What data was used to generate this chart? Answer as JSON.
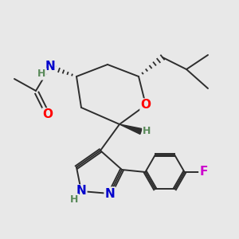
{
  "background_color": "#e8e8e8",
  "bond_color": "#2d2d2d",
  "atom_colors": {
    "O": "#ff0000",
    "N": "#0000cc",
    "H": "#5a8a5a",
    "F": "#cc00cc",
    "C": "#2d2d2d"
  },
  "font_size_atoms": 11,
  "font_size_h": 9,
  "fig_width": 3.0,
  "fig_height": 3.0,
  "dpi": 100
}
